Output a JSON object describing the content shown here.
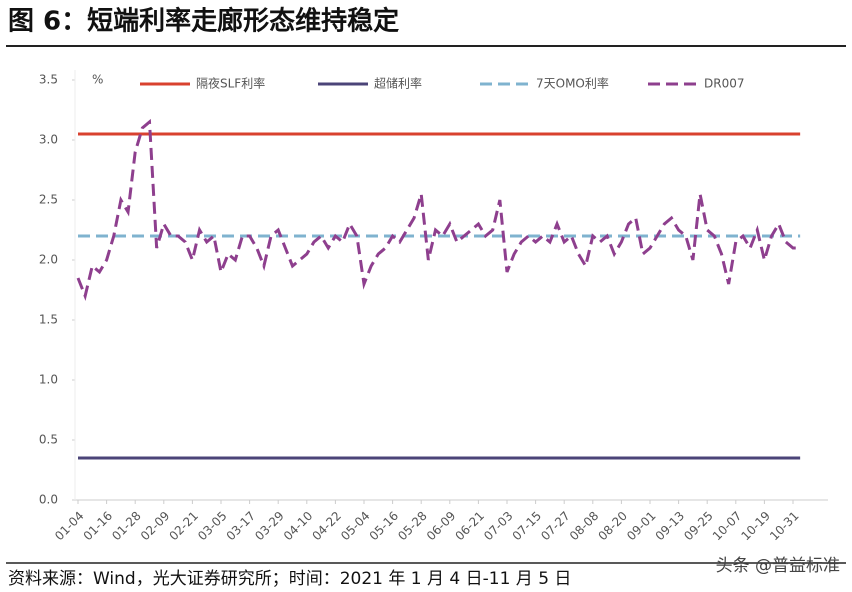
{
  "chart_data": {
    "type": "line",
    "title": "图 6：短端利率走廊形态维持稳定",
    "y_unit": "%",
    "source": "资料来源：Wind，光大证券研究所；时间：2021 年 1 月 4 日-11 月 5 日",
    "watermark": "头条 @普益标准",
    "ylim": [
      0,
      3.5
    ],
    "yticks": [
      {
        "value": 0,
        "label": "0.0"
      },
      0.5,
      {
        "value": 1,
        "label": "1.0"
      },
      1.5,
      {
        "value": 2,
        "label": "2.0"
      },
      2.5,
      {
        "value": 3,
        "label": "3.0"
      },
      3.5
    ],
    "legend": "top",
    "categories": [
      "01-04",
      null,
      null,
      null,
      "01-16",
      null,
      null,
      null,
      "01-28",
      null,
      null,
      null,
      "02-09",
      null,
      null,
      null,
      "02-21",
      null,
      null,
      null,
      "03-05",
      null,
      null,
      null,
      "03-17",
      null,
      null,
      null,
      "03-29",
      null,
      null,
      null,
      "04-10",
      null,
      null,
      null,
      "04-22",
      null,
      null,
      null,
      "05-04",
      null,
      null,
      null,
      "05-16",
      null,
      null,
      null,
      "05-28",
      null,
      null,
      null,
      "06-09",
      null,
      null,
      null,
      "06-21",
      null,
      null,
      null,
      "07-03",
      null,
      null,
      null,
      "07-15",
      null,
      null,
      null,
      "07-27",
      null,
      null,
      null,
      "08-08",
      null,
      null,
      null,
      "08-20",
      null,
      null,
      null,
      "09-01",
      null,
      null,
      null,
      "09-13",
      null,
      null,
      null,
      "09-25",
      null,
      null,
      null,
      "10-07",
      null,
      null,
      null,
      "10-19",
      null,
      null,
      null,
      "10-31",
      null
    ],
    "series": [
      {
        "name": "隔夜SLF利率",
        "color": "#d9412f",
        "dashed": false,
        "values": [
          3.05,
          3.05,
          3.05,
          3.05,
          3.05,
          3.05,
          3.05,
          3.05,
          3.05,
          3.05,
          3.05,
          3.05,
          3.05,
          3.05,
          3.05,
          3.05,
          3.05,
          3.05,
          3.05,
          3.05,
          3.05,
          3.05,
          3.05,
          3.05,
          3.05,
          3.05,
          3.05,
          3.05,
          3.05,
          3.05,
          3.05,
          3.05,
          3.05,
          3.05,
          3.05,
          3.05,
          3.05,
          3.05,
          3.05,
          3.05,
          3.05,
          3.05,
          3.05,
          3.05,
          3.05,
          3.05,
          3.05,
          3.05,
          3.05,
          3.05,
          3.05,
          3.05,
          3.05,
          3.05,
          3.05,
          3.05,
          3.05,
          3.05,
          3.05,
          3.05,
          3.05,
          3.05,
          3.05,
          3.05,
          3.05,
          3.05,
          3.05,
          3.05,
          3.05,
          3.05,
          3.05,
          3.05,
          3.05,
          3.05,
          3.05,
          3.05,
          3.05,
          3.05,
          3.05,
          3.05,
          3.05,
          3.05,
          3.05,
          3.05,
          3.05,
          3.05,
          3.05,
          3.05,
          3.05,
          3.05,
          3.05,
          3.05,
          3.05,
          3.05,
          3.05,
          3.05,
          3.05,
          3.05,
          3.05,
          3.05,
          3.05,
          3.05
        ]
      },
      {
        "name": "超储利率",
        "color": "#4b4478",
        "dashed": false,
        "values": [
          0.35,
          0.35,
          0.35,
          0.35,
          0.35,
          0.35,
          0.35,
          0.35,
          0.35,
          0.35,
          0.35,
          0.35,
          0.35,
          0.35,
          0.35,
          0.35,
          0.35,
          0.35,
          0.35,
          0.35,
          0.35,
          0.35,
          0.35,
          0.35,
          0.35,
          0.35,
          0.35,
          0.35,
          0.35,
          0.35,
          0.35,
          0.35,
          0.35,
          0.35,
          0.35,
          0.35,
          0.35,
          0.35,
          0.35,
          0.35,
          0.35,
          0.35,
          0.35,
          0.35,
          0.35,
          0.35,
          0.35,
          0.35,
          0.35,
          0.35,
          0.35,
          0.35,
          0.35,
          0.35,
          0.35,
          0.35,
          0.35,
          0.35,
          0.35,
          0.35,
          0.35,
          0.35,
          0.35,
          0.35,
          0.35,
          0.35,
          0.35,
          0.35,
          0.35,
          0.35,
          0.35,
          0.35,
          0.35,
          0.35,
          0.35,
          0.35,
          0.35,
          0.35,
          0.35,
          0.35,
          0.35,
          0.35,
          0.35,
          0.35,
          0.35,
          0.35,
          0.35,
          0.35,
          0.35,
          0.35,
          0.35,
          0.35,
          0.35,
          0.35,
          0.35,
          0.35,
          0.35,
          0.35,
          0.35,
          0.35,
          0.35,
          0.35
        ]
      },
      {
        "name": "7天OMO利率",
        "color": "#7fb3cf",
        "dashed": true,
        "values": [
          2.2,
          2.2,
          2.2,
          2.2,
          2.2,
          2.2,
          2.2,
          2.2,
          2.2,
          2.2,
          2.2,
          2.2,
          2.2,
          2.2,
          2.2,
          2.2,
          2.2,
          2.2,
          2.2,
          2.2,
          2.2,
          2.2,
          2.2,
          2.2,
          2.2,
          2.2,
          2.2,
          2.2,
          2.2,
          2.2,
          2.2,
          2.2,
          2.2,
          2.2,
          2.2,
          2.2,
          2.2,
          2.2,
          2.2,
          2.2,
          2.2,
          2.2,
          2.2,
          2.2,
          2.2,
          2.2,
          2.2,
          2.2,
          2.2,
          2.2,
          2.2,
          2.2,
          2.2,
          2.2,
          2.2,
          2.2,
          2.2,
          2.2,
          2.2,
          2.2,
          2.2,
          2.2,
          2.2,
          2.2,
          2.2,
          2.2,
          2.2,
          2.2,
          2.2,
          2.2,
          2.2,
          2.2,
          2.2,
          2.2,
          2.2,
          2.2,
          2.2,
          2.2,
          2.2,
          2.2,
          2.2,
          2.2,
          2.2,
          2.2,
          2.2,
          2.2,
          2.2,
          2.2,
          2.2,
          2.2,
          2.2,
          2.2,
          2.2,
          2.2,
          2.2,
          2.2,
          2.2,
          2.2,
          2.2,
          2.2,
          2.2,
          2.2
        ]
      },
      {
        "name": "DR007",
        "color": "#8e3f8e",
        "dashed": true,
        "values": [
          1.85,
          1.7,
          1.95,
          1.9,
          2.0,
          2.2,
          2.5,
          2.4,
          2.9,
          3.1,
          3.15,
          2.1,
          2.3,
          2.2,
          2.2,
          2.15,
          2.0,
          2.25,
          2.15,
          2.2,
          1.9,
          2.05,
          2.0,
          2.2,
          2.2,
          2.1,
          1.95,
          2.2,
          2.25,
          2.1,
          1.95,
          2.0,
          2.05,
          2.15,
          2.2,
          2.1,
          2.2,
          2.15,
          2.3,
          2.2,
          1.8,
          1.95,
          2.05,
          2.1,
          2.2,
          2.15,
          2.25,
          2.35,
          2.55,
          2.0,
          2.25,
          2.2,
          2.3,
          2.15,
          2.2,
          2.25,
          2.3,
          2.2,
          2.25,
          2.5,
          1.9,
          2.05,
          2.15,
          2.2,
          2.15,
          2.2,
          2.15,
          2.3,
          2.15,
          2.2,
          2.05,
          1.95,
          2.2,
          2.15,
          2.2,
          2.05,
          2.15,
          2.3,
          2.35,
          2.05,
          2.1,
          2.2,
          2.3,
          2.35,
          2.25,
          2.2,
          2.0,
          2.55,
          2.25,
          2.2,
          2.05,
          1.8,
          2.15,
          2.2,
          2.1,
          2.25,
          2.0,
          2.2,
          2.3,
          2.15,
          2.1,
          2.1
        ]
      }
    ]
  }
}
